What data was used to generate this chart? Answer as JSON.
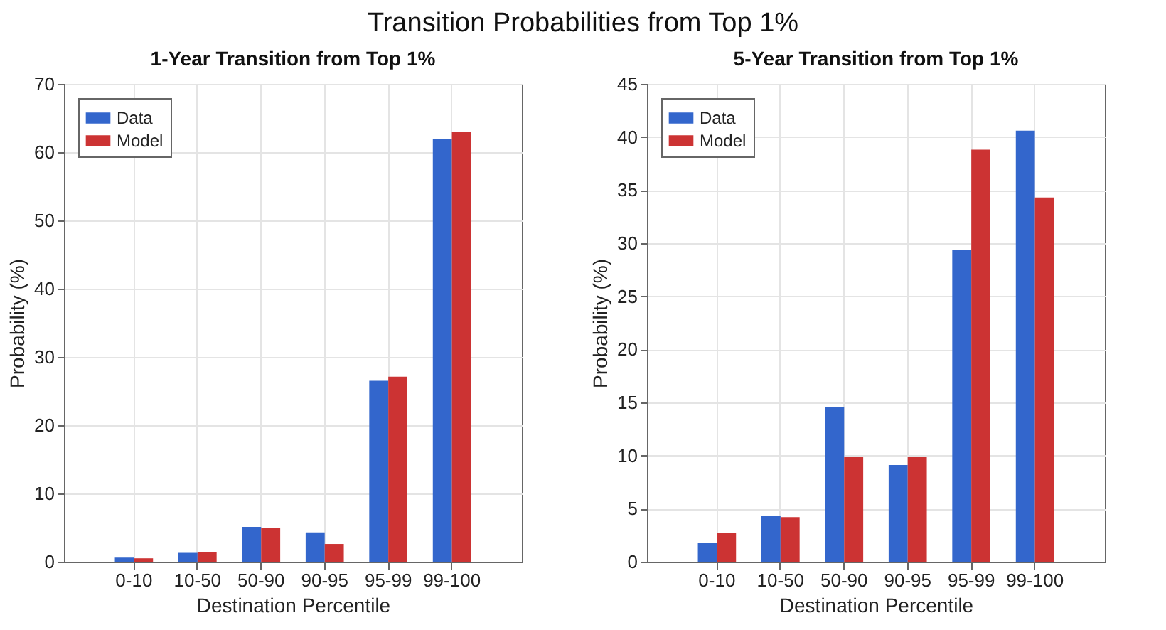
{
  "chart_data": [
    {
      "type": "bar",
      "title": "1-Year Transition from Top 1%",
      "annotations": [
        "Transition Probabilities from Top 1%"
      ],
      "xlabel": "Destination Percentile",
      "ylabel": "Probability (%)",
      "categories": [
        "0-10",
        "10-50",
        "50-90",
        "90-95",
        "95-99",
        "99-100"
      ],
      "series": [
        {
          "name": "Data",
          "color": "#3366cc",
          "values": [
            0.6,
            1.3,
            5.1,
            4.3,
            26.5,
            61.9
          ]
        },
        {
          "name": "Model",
          "color": "#cc3333",
          "values": [
            0.5,
            1.4,
            5.0,
            2.6,
            27.1,
            63.0
          ]
        }
      ],
      "ylim": [
        0,
        70
      ],
      "yticks": [
        0,
        10,
        20,
        30,
        40,
        50,
        60,
        70
      ],
      "grid": true,
      "legend": "top left"
    },
    {
      "type": "bar",
      "title": "5-Year Transition from Top 1%",
      "xlabel": "Destination Percentile",
      "ylabel": "Probability (%)",
      "categories": [
        "0-10",
        "10-50",
        "50-90",
        "90-95",
        "95-99",
        "99-100"
      ],
      "series": [
        {
          "name": "Data",
          "color": "#3366cc",
          "values": [
            1.8,
            4.3,
            14.6,
            9.1,
            29.4,
            40.6
          ]
        },
        {
          "name": "Model",
          "color": "#cc3333",
          "values": [
            2.7,
            4.2,
            9.9,
            9.9,
            38.8,
            34.3
          ]
        }
      ],
      "ylim": [
        0,
        45
      ],
      "yticks": [
        0,
        5,
        10,
        15,
        20,
        25,
        30,
        35,
        40,
        45
      ],
      "grid": true,
      "legend": "top left"
    }
  ]
}
